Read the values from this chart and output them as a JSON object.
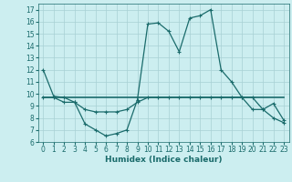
{
  "line1_x": [
    0,
    1,
    2,
    3,
    4,
    5,
    6,
    7,
    8,
    9,
    10,
    11,
    12,
    13,
    14,
    15,
    16,
    17,
    18,
    19,
    20,
    21,
    22,
    23
  ],
  "line1_y": [
    12,
    9.8,
    9.7,
    9.3,
    7.5,
    7.0,
    6.5,
    6.7,
    7.0,
    9.5,
    15.8,
    15.9,
    15.2,
    13.5,
    16.3,
    16.5,
    17.0,
    12.0,
    11.0,
    9.7,
    9.7,
    8.7,
    9.2,
    7.8
  ],
  "line2_x": [
    0,
    1,
    2,
    3,
    4,
    5,
    6,
    7,
    8,
    9,
    10,
    11,
    12,
    13,
    14,
    15,
    16,
    17,
    18,
    19,
    20,
    21,
    22,
    23
  ],
  "line2_y": [
    9.7,
    9.7,
    9.3,
    9.3,
    8.7,
    8.5,
    8.5,
    8.5,
    8.7,
    9.3,
    9.7,
    9.7,
    9.7,
    9.7,
    9.7,
    9.7,
    9.7,
    9.7,
    9.7,
    9.7,
    8.7,
    8.7,
    8.0,
    7.6
  ],
  "line3_x": [
    0,
    1,
    2,
    3,
    4,
    5,
    6,
    7,
    8,
    9,
    10,
    11,
    12,
    13,
    14,
    15,
    16,
    17,
    18,
    19,
    20,
    21,
    22,
    23
  ],
  "line3_y": [
    9.7,
    9.7,
    9.7,
    9.7,
    9.7,
    9.7,
    9.7,
    9.7,
    9.7,
    9.7,
    9.7,
    9.7,
    9.7,
    9.7,
    9.7,
    9.7,
    9.7,
    9.7,
    9.7,
    9.7,
    9.7,
    9.7,
    9.7,
    9.7
  ],
  "line_color": "#1a6b6b",
  "bg_color": "#cceef0",
  "grid_color": "#a8d0d4",
  "xlabel": "Humidex (Indice chaleur)",
  "xlim": [
    -0.5,
    23.5
  ],
  "ylim": [
    6,
    17.5
  ],
  "xticks": [
    0,
    1,
    2,
    3,
    4,
    5,
    6,
    7,
    8,
    9,
    10,
    11,
    12,
    13,
    14,
    15,
    16,
    17,
    18,
    19,
    20,
    21,
    22,
    23
  ],
  "yticks": [
    6,
    7,
    8,
    9,
    10,
    11,
    12,
    13,
    14,
    15,
    16,
    17
  ],
  "xlabel_fontsize": 6.5,
  "tick_fontsize": 5.5
}
